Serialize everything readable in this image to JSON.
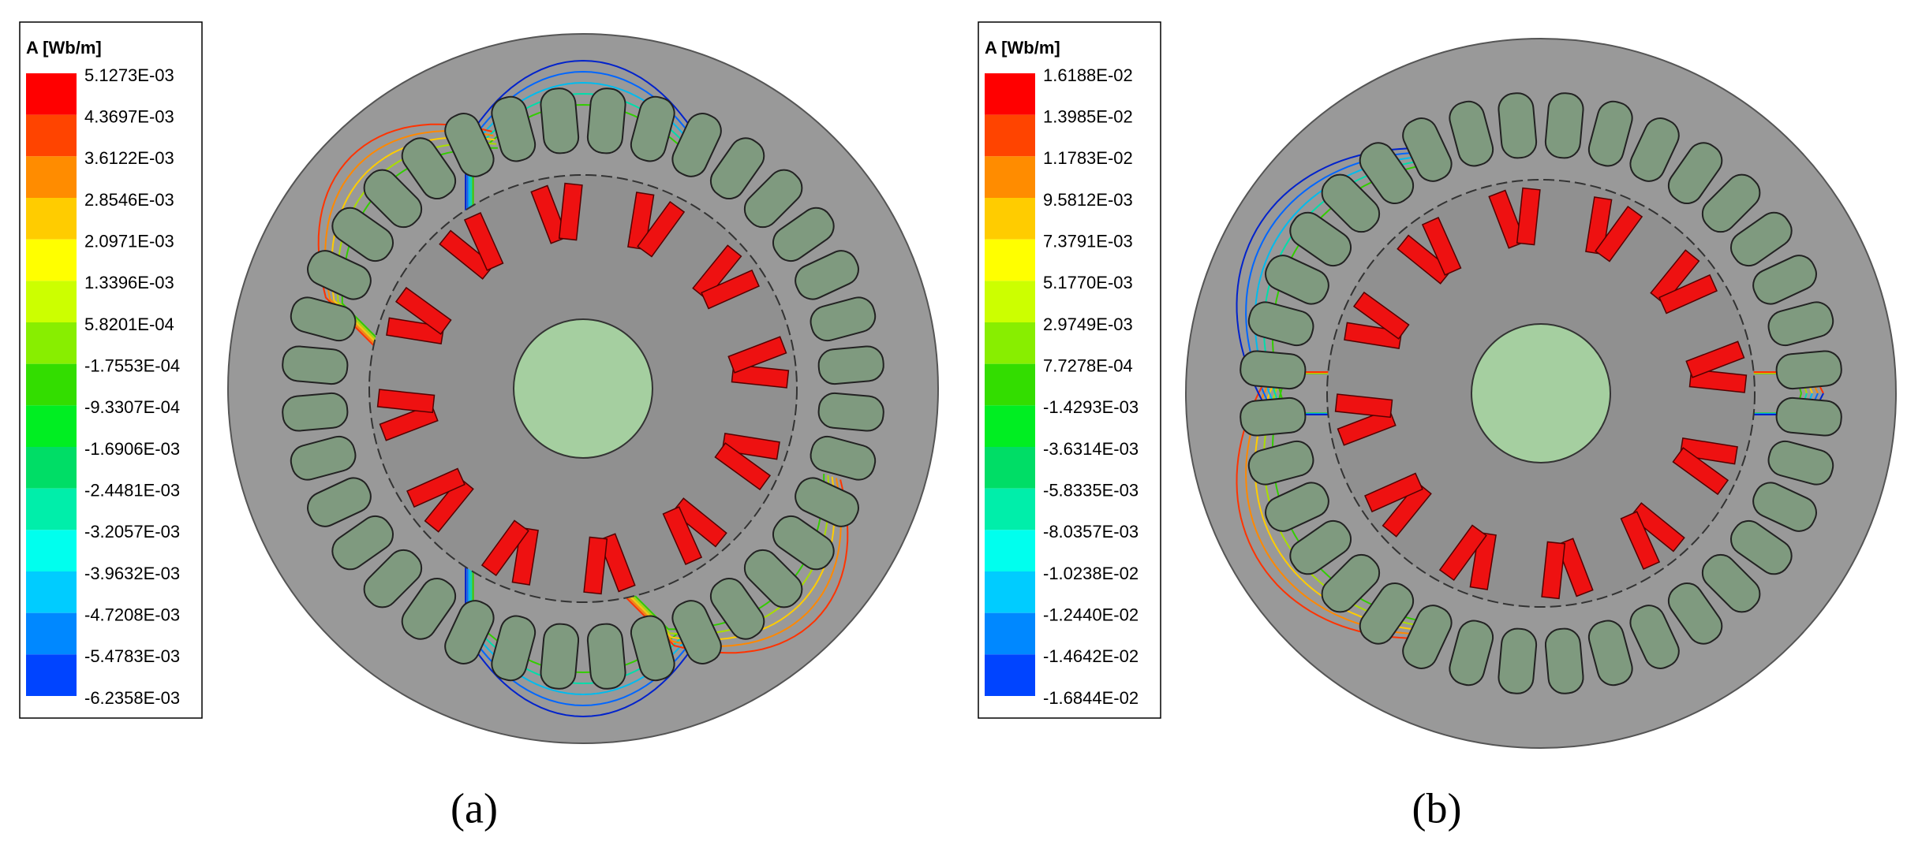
{
  "panels": [
    {
      "legend_title": "A [Wb/m]",
      "legend_labels": [
        "5.1273E-03",
        "4.3697E-03",
        "3.6122E-03",
        "2.8546E-03",
        "2.0971E-03",
        "1.3396E-03",
        "5.8201E-04",
        "-1.7553E-04",
        "-9.3307E-04",
        "-1.6906E-03",
        "-2.4481E-03",
        "-3.2057E-03",
        "-3.9632E-03",
        "-4.7208E-03",
        "-5.4783E-03",
        "-6.2358E-03"
      ],
      "caption": "(a)"
    },
    {
      "legend_title": "A [Wb/m]",
      "legend_labels": [
        "1.6188E-02",
        "1.3985E-02",
        "1.1783E-02",
        "9.5812E-03",
        "7.3791E-03",
        "5.1770E-03",
        "2.9749E-03",
        "7.7278E-04",
        "-1.4293E-03",
        "-3.6314E-03",
        "-5.8335E-03",
        "-8.0357E-03",
        "-1.0238E-02",
        "-1.2440E-02",
        "-1.4642E-02",
        "-1.6844E-02"
      ],
      "caption": "(b)"
    }
  ],
  "legend_colors": [
    "#ff0000",
    "#ff4400",
    "#ff8c00",
    "#ffcc00",
    "#ffff00",
    "#ccff00",
    "#88ee00",
    "#33dd00",
    "#00ee22",
    "#00dd66",
    "#00eeaa",
    "#00ffee",
    "#00ccff",
    "#0088ff",
    "#0044ff",
    "#0000ff"
  ]
}
